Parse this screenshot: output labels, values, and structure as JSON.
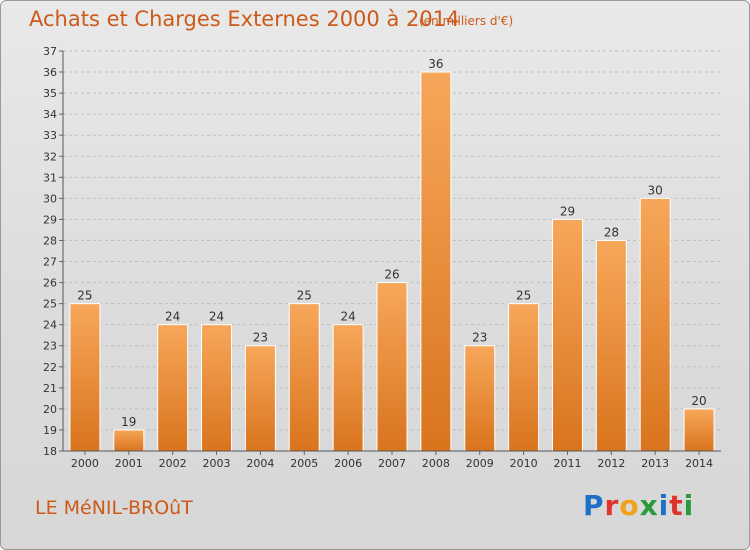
{
  "header": {
    "title": "Achats et Charges Externes 2000 à 2014",
    "unit": "(en milliers d'€)"
  },
  "footer": {
    "commune": "LE MéNIL-BROûT",
    "brand": "Proxiti",
    "brand_letter_colors": [
      "#1f6fc5",
      "#e0332b",
      "#f2a21a",
      "#2a9a3a",
      "#1f6fc5",
      "#e0332b",
      "#2a9a3a"
    ]
  },
  "colors": {
    "bar_light": "#f7a75a",
    "bar_dark": "#d9741d",
    "title": "#cc5a1a",
    "grid": "#bfbfbf",
    "axis_text": "#333333"
  },
  "chart_data": {
    "type": "bar",
    "title": "Achats et Charges Externes 2000 à 2014",
    "subtitle": "(en milliers d'€)",
    "categories": [
      "2000",
      "2001",
      "2002",
      "2003",
      "2004",
      "2005",
      "2006",
      "2007",
      "2008",
      "2009",
      "2010",
      "2011",
      "2012",
      "2013",
      "2014"
    ],
    "values": [
      25,
      19,
      24,
      24,
      23,
      25,
      24,
      26,
      36,
      23,
      25,
      29,
      28,
      30,
      20
    ],
    "data_labels": [
      "25",
      "19",
      "24",
      "24",
      "23",
      "25",
      "24",
      "26",
      "36",
      "23",
      "25",
      "29",
      "28",
      "30",
      "20"
    ],
    "ylim": [
      18,
      37
    ],
    "yticks": [
      18,
      19,
      20,
      21,
      22,
      23,
      24,
      25,
      26,
      27,
      28,
      29,
      30,
      31,
      32,
      33,
      34,
      35,
      36,
      37
    ],
    "grid": "horizontal dashed",
    "xlabel": "",
    "ylabel": ""
  }
}
